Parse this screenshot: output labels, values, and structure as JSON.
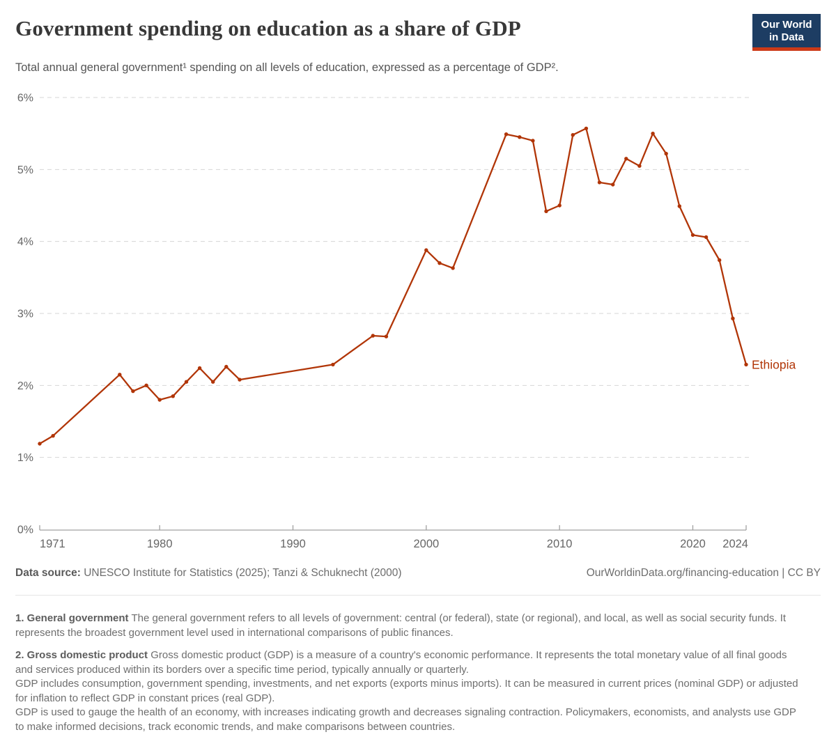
{
  "header": {
    "title": "Government spending on education as a share of GDP",
    "subtitle": "Total annual general government¹ spending on all levels of education, expressed as a percentage of GDP².",
    "logo": {
      "line1": "Our World",
      "line2": "in Data"
    }
  },
  "chart_data": {
    "type": "line",
    "title": "Government spending on education as a share of GDP",
    "xlabel": "",
    "ylabel": "",
    "x_range": [
      1971,
      2024
    ],
    "ylim": [
      0,
      6
    ],
    "y_tick_suffix": "%",
    "x_ticks": [
      1971,
      1980,
      1990,
      2000,
      2010,
      2020,
      2024
    ],
    "y_ticks": [
      0,
      1,
      2,
      3,
      4,
      5,
      6
    ],
    "grid": true,
    "legend_position": "end-of-line-label",
    "series": [
      {
        "name": "Ethiopia",
        "color": "#b13507",
        "points": [
          [
            1971,
            1.19
          ],
          [
            1972,
            1.3
          ],
          [
            1977,
            2.15
          ],
          [
            1978,
            1.92
          ],
          [
            1979,
            2.0
          ],
          [
            1980,
            1.8
          ],
          [
            1981,
            1.85
          ],
          [
            1982,
            2.05
          ],
          [
            1983,
            2.24
          ],
          [
            1984,
            2.05
          ],
          [
            1985,
            2.26
          ],
          [
            1986,
            2.08
          ],
          [
            1993,
            2.29
          ],
          [
            1996,
            2.69
          ],
          [
            1997,
            2.68
          ],
          [
            2000,
            3.88
          ],
          [
            2001,
            3.7
          ],
          [
            2002,
            3.63
          ],
          [
            2006,
            5.49
          ],
          [
            2007,
            5.45
          ],
          [
            2008,
            5.4
          ],
          [
            2009,
            4.42
          ],
          [
            2010,
            4.5
          ],
          [
            2011,
            5.48
          ],
          [
            2012,
            5.57
          ],
          [
            2013,
            4.82
          ],
          [
            2014,
            4.79
          ],
          [
            2015,
            5.15
          ],
          [
            2016,
            5.05
          ],
          [
            2017,
            5.5
          ],
          [
            2018,
            5.22
          ],
          [
            2019,
            4.49
          ],
          [
            2020,
            4.09
          ],
          [
            2021,
            4.06
          ],
          [
            2022,
            3.74
          ],
          [
            2023,
            2.93
          ],
          [
            2024,
            2.29
          ]
        ]
      }
    ],
    "style": {
      "grid_color": "#d6d6d6",
      "axis_color": "#a0a0a0",
      "tick_label_color": "#666666"
    }
  },
  "footer": {
    "source_label": "Data source:",
    "source_text": " UNESCO Institute for Statistics (2025); Tanzi & Schuknecht (2000)",
    "attribution": "OurWorldinData.org/financing-education | CC BY"
  },
  "footnotes": [
    {
      "label": "1. General government",
      "lines": [
        "The general government refers to all levels of government: central (or federal), state (or regional), and local, as well as social security funds. It represents the broadest government level used in international comparisons of public finances."
      ]
    },
    {
      "label": "2. Gross domestic product",
      "lines": [
        "Gross domestic product (GDP) is a measure of a country's economic performance. It represents the total monetary value of all final goods and services produced within its borders over a specific time period, typically annually or quarterly.",
        "GDP includes consumption, government spending, investments, and net exports (exports minus imports). It can be measured in current prices (nominal GDP) or adjusted for inflation to reflect GDP in constant prices (real GDP).",
        "GDP is used to gauge the health of an economy, with increases indicating growth and decreases signaling contraction. Policymakers, economists, and analysts use GDP to make informed decisions, track economic trends, and make comparisons between countries."
      ]
    }
  ]
}
